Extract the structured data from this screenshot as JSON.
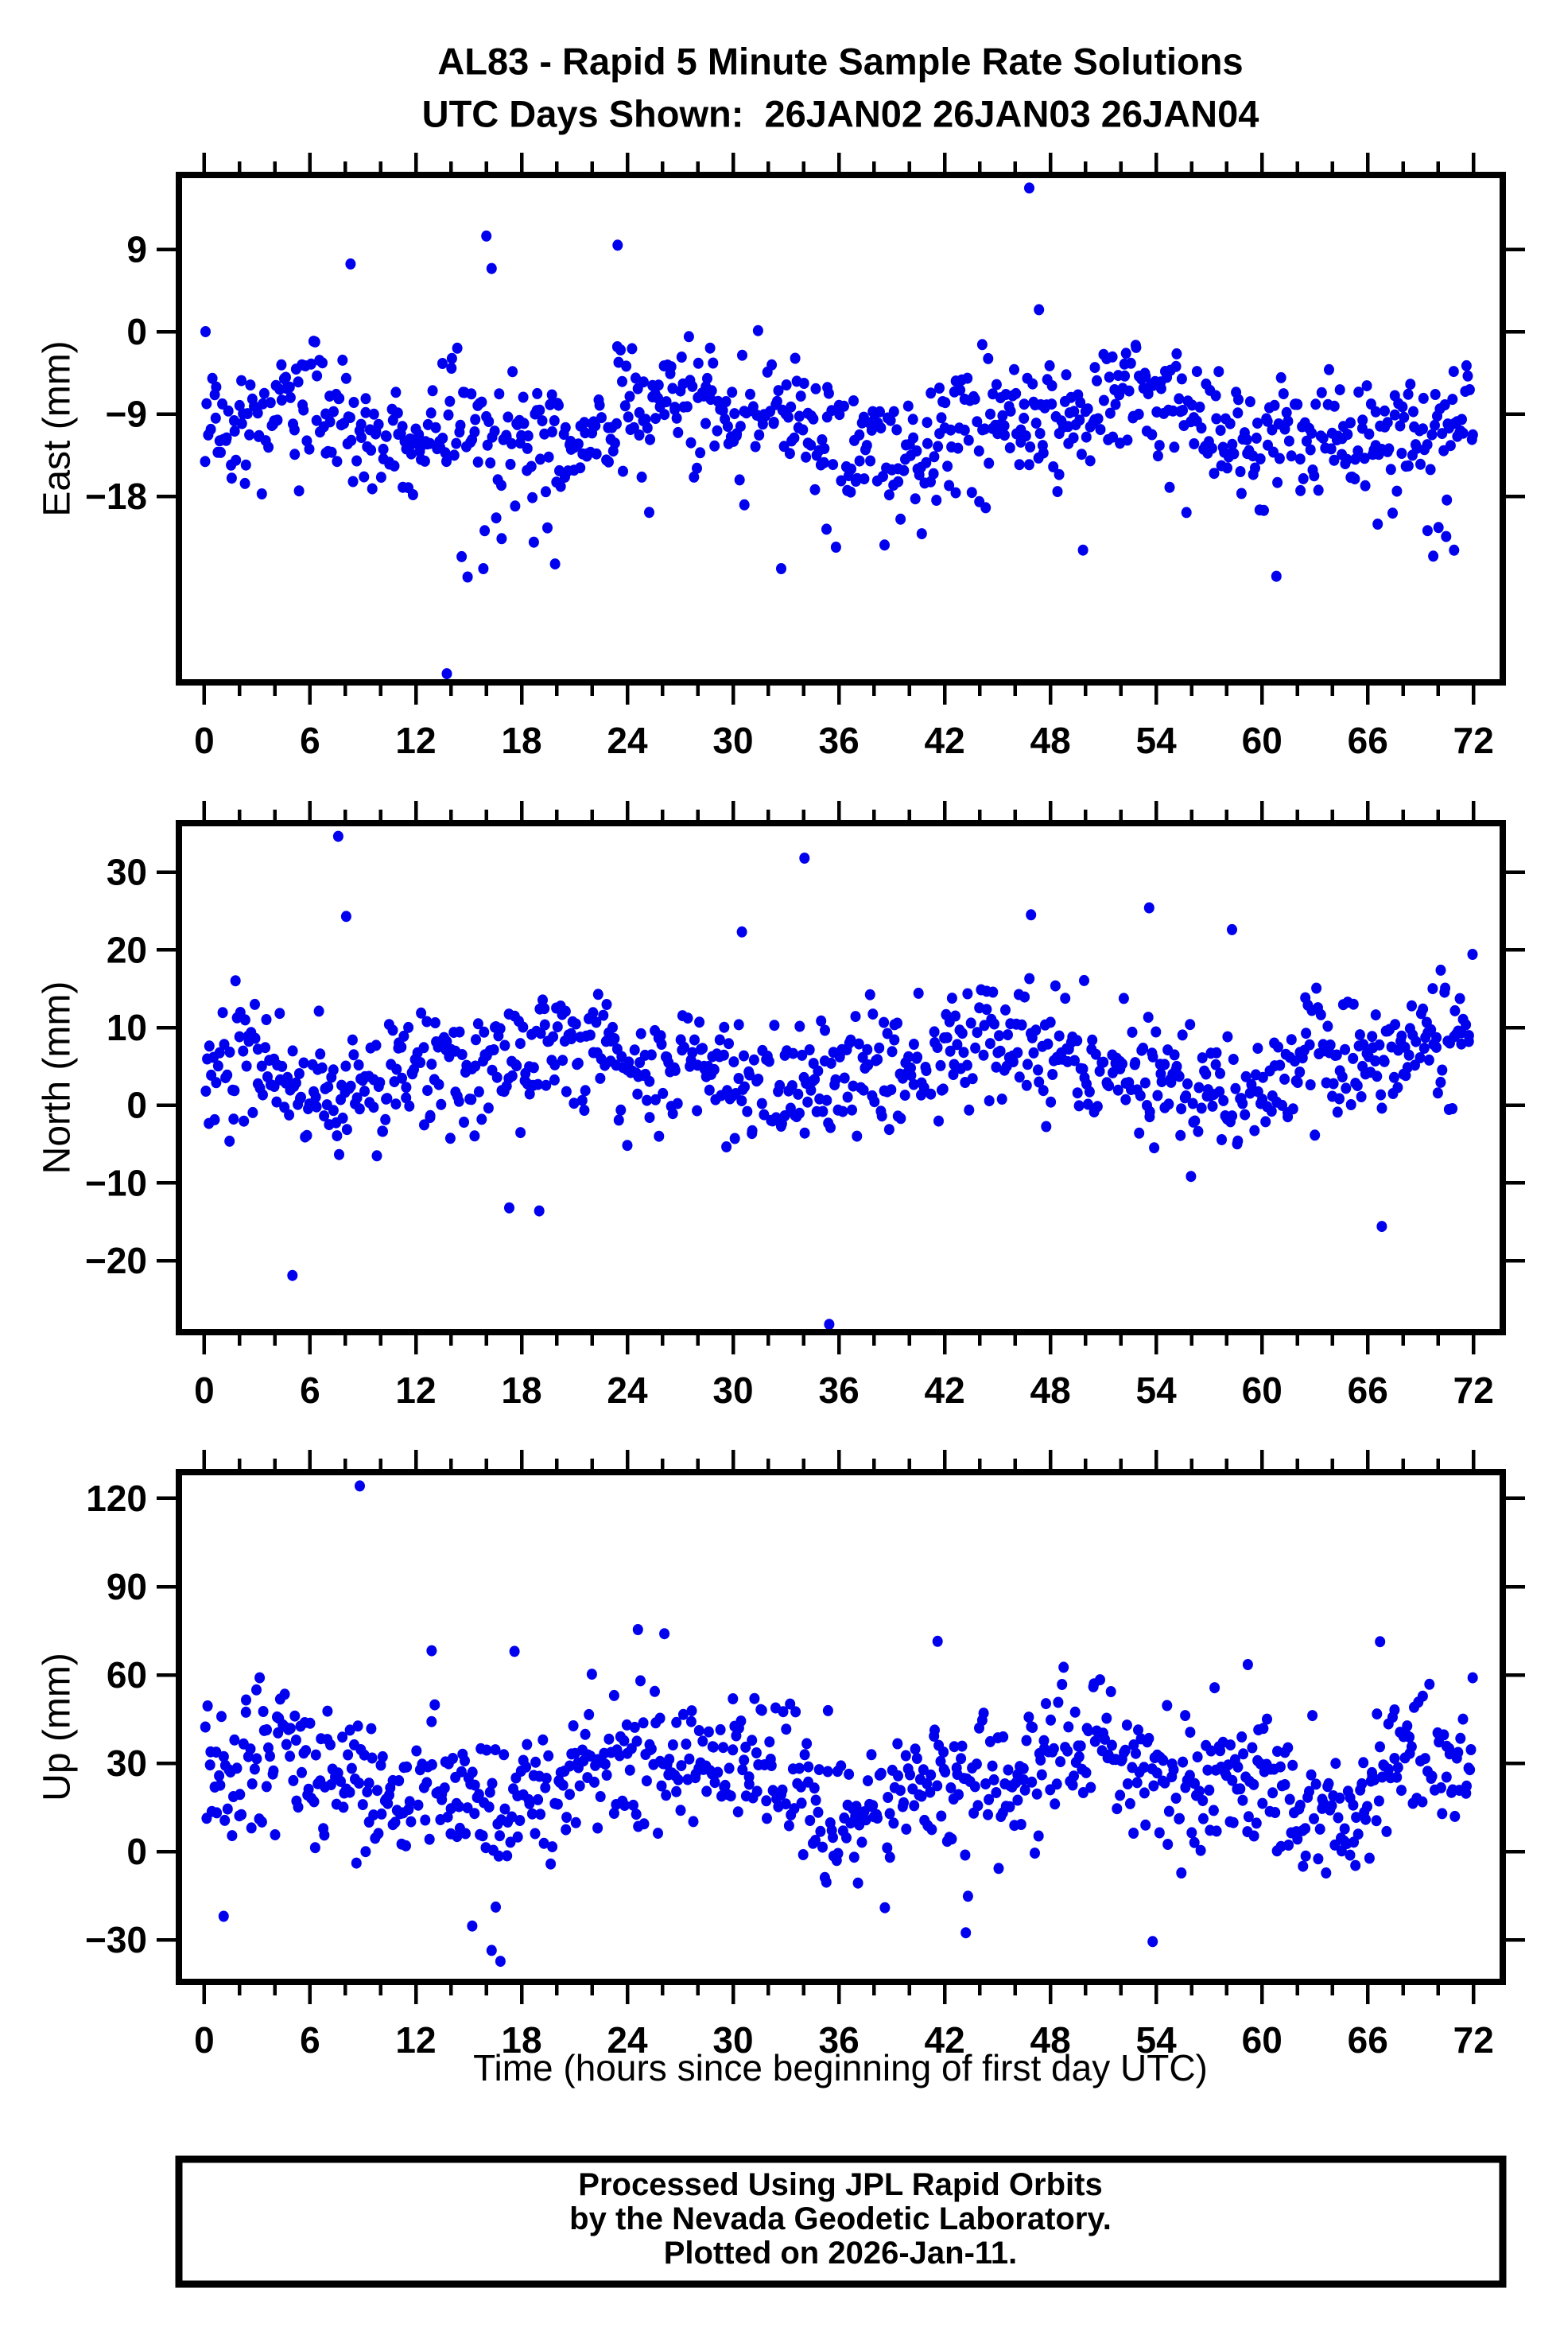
{
  "header": {
    "title_line1": "AL83 - Rapid 5 Minute Sample Rate Solutions",
    "title_line2": "UTC Days Shown:  26JAN02 26JAN03 26JAN04"
  },
  "footer": {
    "line1": "Processed Using JPL Rapid Orbits",
    "line2": "by the Nevada Geodetic Laboratory.",
    "line3": "Plotted on 2026-Jan-11."
  },
  "chart_data": {
    "type": "scatter",
    "marker_color": "#0000EE",
    "frame_color": "#000000",
    "grid": false,
    "legend": false,
    "xlabel": "Time (hours since beginning of first day UTC)",
    "x_axis": {
      "lim": [
        -1.44,
        73.66
      ],
      "major_ticks": [
        0,
        6,
        12,
        18,
        24,
        30,
        36,
        42,
        48,
        54,
        60,
        66,
        72
      ],
      "minor_tick_step": 2,
      "units": "hours"
    },
    "panels": [
      {
        "id": "east",
        "ylabel": "East (mm)",
        "ylim": [
          -38.35,
          17.13
        ],
        "yticks": [
          9,
          0,
          -9,
          -18
        ],
        "approx_distribution": {
          "n": 858,
          "x_start": 0.05,
          "x_end": 71.95,
          "x_jitter": 0.05,
          "dropout": 0.045,
          "mean": -10.2,
          "sigma": 3.1,
          "waves": [
            {
              "amp": 2.1,
              "period": 24,
              "phase": 21
            },
            {
              "amp": 1.3,
              "period": 9.6,
              "phase": 3.2
            }
          ],
          "tail_down": {
            "p": 0.055,
            "min": 2,
            "max": 13
          },
          "tail_up": {
            "p": 0.012,
            "min": 2,
            "max": 7
          }
        },
        "outliers": [
          [
            0.07,
            0.0
          ],
          [
            8.3,
            7.4
          ],
          [
            16.0,
            10.45
          ],
          [
            16.3,
            6.9
          ],
          [
            23.45,
            9.45
          ],
          [
            46.8,
            15.7
          ],
          [
            47.35,
            2.4
          ],
          [
            13.76,
            -37.4
          ],
          [
            14.6,
            -24.6
          ],
          [
            19.9,
            -25.4
          ],
          [
            35.3,
            -21.6
          ],
          [
            70.45,
            -22.4
          ],
          [
            70.9,
            -23.9
          ]
        ]
      },
      {
        "id": "north",
        "ylabel": "North (mm)",
        "ylim": [
          -29.2,
          36.3
        ],
        "yticks": [
          30,
          20,
          10,
          0,
          -10,
          -20
        ],
        "approx_distribution": {
          "n": 855,
          "x_start": 0.05,
          "x_end": 71.95,
          "x_jitter": 0.05,
          "dropout": 0.045,
          "mean": 5.2,
          "sigma": 3.7,
          "waves": [
            {
              "amp": 2.6,
              "period": 24,
              "phase": 15
            },
            {
              "amp": 1.4,
              "period": 8.4,
              "phase": 1.5
            }
          ],
          "tail_down": {
            "p": 0.022,
            "min": 2,
            "max": 9
          },
          "tail_up": {
            "p": 0.02,
            "min": 2,
            "max": 9
          }
        },
        "outliers": [
          [
            7.6,
            34.6
          ],
          [
            34.05,
            31.8
          ],
          [
            5.0,
            -21.9
          ],
          [
            35.45,
            -28.2
          ],
          [
            8.05,
            24.3
          ],
          [
            46.9,
            24.5
          ],
          [
            53.6,
            25.4
          ],
          [
            58.3,
            22.6
          ],
          [
            30.5,
            22.3
          ],
          [
            66.8,
            -15.6
          ],
          [
            17.3,
            -13.2
          ],
          [
            19.0,
            -13.6
          ]
        ]
      },
      {
        "id": "up",
        "ylabel": "Up (mm)",
        "ylim": [
          -44.3,
          128.9
        ],
        "yticks": [
          120,
          90,
          60,
          30,
          0,
          -30
        ],
        "approx_distribution": {
          "n": 855,
          "x_start": 0.05,
          "x_end": 71.95,
          "x_jitter": 0.05,
          "dropout": 0.045,
          "mean": 24.5,
          "sigma": 11.5,
          "waves": [
            {
              "amp": 7,
              "period": 24,
              "phase": 20
            },
            {
              "amp": 4,
              "period": 9.2,
              "phase": 2.5
            }
          ],
          "tail_down": {
            "p": 0.02,
            "min": 5,
            "max": 22
          },
          "tail_up": {
            "p": 0.014,
            "min": 5,
            "max": 20
          }
        },
        "outliers": [
          [
            8.82,
            124.2
          ],
          [
            24.6,
            75.4
          ],
          [
            26.1,
            74.0
          ],
          [
            41.6,
            71.4
          ],
          [
            66.7,
            71.3
          ],
          [
            12.9,
            68.2
          ],
          [
            17.6,
            68.0
          ],
          [
            59.2,
            63.5
          ],
          [
            16.8,
            -37.3
          ],
          [
            16.3,
            -33.6
          ],
          [
            15.2,
            -25.3
          ],
          [
            53.8,
            -30.6
          ],
          [
            43.2,
            -27.6
          ],
          [
            1.1,
            -22.0
          ]
        ]
      }
    ]
  }
}
